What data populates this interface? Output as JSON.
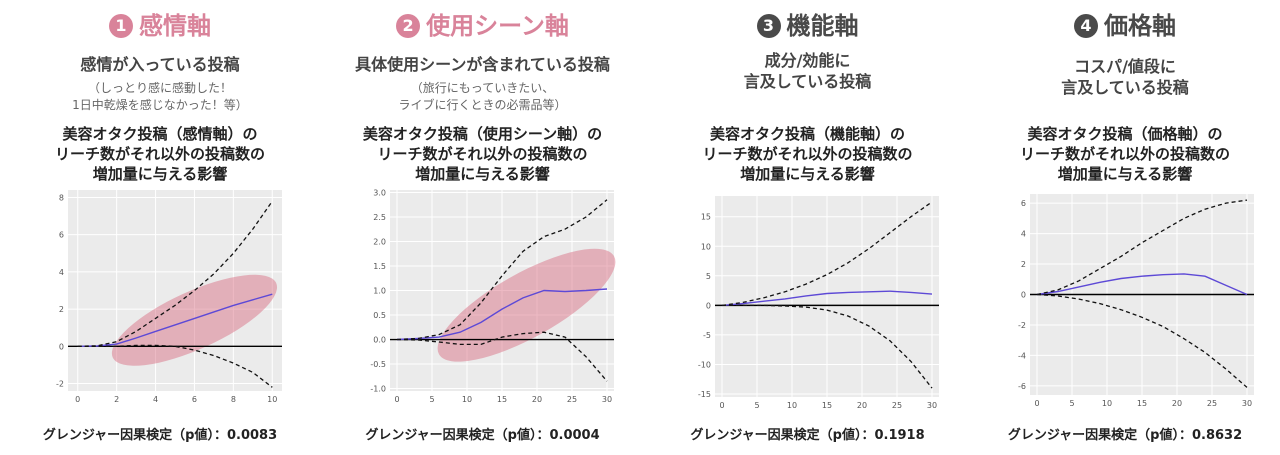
{
  "colors": {
    "pink": "#d9839a",
    "gray": "#4a4a4a",
    "shade": "#d6677c",
    "ci": "#111111",
    "irf": "#5d49d6"
  },
  "panels": [
    {
      "number": "1",
      "title": "感情軸",
      "accent": "#d9839a",
      "desc": [
        "感情が入っている投稿"
      ],
      "sub": [
        "（しっとり感に感動した！",
        "1日中乾燥を感じなかった！等）"
      ],
      "chart_title": [
        "美容オタク投稿（感情軸）の",
        "リーチ数がそれ以外の投稿数の",
        "増加量に与える影響"
      ],
      "footer": "グレンジャー因果検定（p値）：0.0083"
    },
    {
      "number": "2",
      "title": "使用シーン軸",
      "accent": "#d9839a",
      "desc": [
        "具体使用シーンが含まれている投稿"
      ],
      "sub": [
        "（旅行にもっていきたい、",
        "ライブに行くときの必需品等）"
      ],
      "chart_title": [
        "美容オタク投稿（使用シーン軸）の",
        "リーチ数がそれ以外の投稿数の",
        "増加量に与える影響"
      ],
      "footer": "グレンジャー因果検定（p値）：0.0004"
    },
    {
      "number": "3",
      "title": "機能軸",
      "accent": "#4a4a4a",
      "desc": [
        "成分/効能に",
        "言及している投稿"
      ],
      "sub": [],
      "chart_title": [
        "美容オタク投稿（機能軸）の",
        "リーチ数がそれ以外の投稿数の",
        "増加量に与える影響"
      ],
      "footer": "グレンジャー因果検定（p値）：0.1918"
    },
    {
      "number": "4",
      "title": "価格軸",
      "accent": "#4a4a4a",
      "desc": [
        "コスパ/値段に",
        "言及している投稿"
      ],
      "sub": [],
      "chart_title": [
        "美容オタク投稿（価格軸）の",
        "リーチ数がそれ以外の投稿数の",
        "増加量に与える影響"
      ],
      "footer": "グレンジャー因果検定（p値）：0.8632"
    }
  ],
  "chart_data": [
    {
      "type": "line",
      "x": [
        0,
        1,
        2,
        3,
        4,
        5,
        6,
        7,
        8,
        9,
        10
      ],
      "xlim": [
        -0.5,
        10.5
      ],
      "ylim": [
        -2.4,
        8.4
      ],
      "xticks": [
        0,
        2,
        4,
        6,
        8,
        10
      ],
      "yticks": [
        -2,
        0,
        2,
        4,
        6,
        8
      ],
      "series": [
        {
          "role": "response",
          "values": [
            0,
            0.02,
            0.12,
            0.45,
            0.8,
            1.15,
            1.5,
            1.85,
            2.2,
            2.5,
            2.8
          ]
        },
        {
          "role": "upper",
          "values": [
            0,
            0.03,
            0.25,
            0.8,
            1.5,
            2.2,
            3.0,
            3.9,
            5.0,
            6.3,
            7.8
          ]
        },
        {
          "role": "lower",
          "values": [
            0,
            0,
            0,
            0.05,
            0.05,
            0,
            -0.2,
            -0.5,
            -0.9,
            -1.4,
            -2.2
          ]
        }
      ],
      "highlight": {
        "shape": "ellipse",
        "x": [
          1.8,
          10.2
        ],
        "y": [
          -0.6,
          3.4
        ]
      }
    },
    {
      "type": "line",
      "x": [
        0,
        3,
        6,
        9,
        12,
        15,
        18,
        21,
        24,
        27,
        30
      ],
      "xlim": [
        -1,
        31
      ],
      "ylim": [
        -1.05,
        3.05
      ],
      "xticks": [
        0,
        5,
        10,
        15,
        20,
        25,
        30
      ],
      "yticks": [
        -1.0,
        -0.5,
        0.0,
        0.5,
        1.0,
        1.5,
        2.0,
        2.5,
        3.0
      ],
      "series": [
        {
          "role": "response",
          "values": [
            0,
            0.02,
            0.05,
            0.15,
            0.35,
            0.62,
            0.85,
            1.0,
            0.98,
            1.0,
            1.03
          ]
        },
        {
          "role": "upper",
          "values": [
            0,
            0.02,
            0.1,
            0.3,
            0.75,
            1.3,
            1.8,
            2.1,
            2.25,
            2.5,
            2.85
          ]
        },
        {
          "role": "lower",
          "values": [
            0,
            -0.01,
            -0.05,
            -0.1,
            -0.1,
            0.05,
            0.12,
            0.15,
            0.05,
            -0.35,
            -0.85
          ]
        }
      ],
      "highlight": {
        "shape": "ellipse",
        "x": [
          6,
          31
        ],
        "y": [
          -0.3,
          1.7
        ]
      }
    },
    {
      "type": "line",
      "x": [
        0,
        3,
        6,
        9,
        12,
        15,
        18,
        21,
        24,
        27,
        30
      ],
      "xlim": [
        -1,
        31
      ],
      "ylim": [
        -15.5,
        18.5
      ],
      "xticks": [
        0,
        5,
        10,
        15,
        20,
        25,
        30
      ],
      "yticks": [
        -15,
        -10,
        -5,
        0,
        5,
        10,
        15
      ],
      "series": [
        {
          "role": "response",
          "values": [
            0,
            0.3,
            0.7,
            1.1,
            1.6,
            2.0,
            2.2,
            2.3,
            2.4,
            2.2,
            1.9
          ]
        },
        {
          "role": "upper",
          "values": [
            0,
            0.5,
            1.3,
            2.3,
            3.6,
            5.2,
            7.2,
            9.6,
            12.3,
            15.0,
            17.5
          ]
        },
        {
          "role": "lower",
          "values": [
            0,
            0,
            0,
            -0.1,
            -0.3,
            -0.8,
            -1.8,
            -3.5,
            -6.0,
            -9.5,
            -14.0
          ]
        }
      ]
    },
    {
      "type": "line",
      "x": [
        0,
        3,
        6,
        9,
        12,
        15,
        18,
        21,
        24,
        27,
        30
      ],
      "xlim": [
        -1,
        31
      ],
      "ylim": [
        -6.6,
        6.6
      ],
      "xticks": [
        0,
        5,
        10,
        15,
        20,
        25,
        30
      ],
      "yticks": [
        -6,
        -4,
        -2,
        0,
        2,
        4,
        6
      ],
      "series": [
        {
          "role": "response",
          "values": [
            0,
            0.2,
            0.5,
            0.8,
            1.05,
            1.2,
            1.3,
            1.35,
            1.2,
            0.6,
            0
          ]
        },
        {
          "role": "upper",
          "values": [
            0,
            0.3,
            0.9,
            1.7,
            2.5,
            3.4,
            4.2,
            5.0,
            5.6,
            6.0,
            6.2
          ]
        },
        {
          "role": "lower",
          "values": [
            0,
            -0.1,
            -0.3,
            -0.6,
            -1.0,
            -1.5,
            -2.1,
            -2.9,
            -3.8,
            -4.9,
            -6.1
          ]
        }
      ]
    }
  ]
}
